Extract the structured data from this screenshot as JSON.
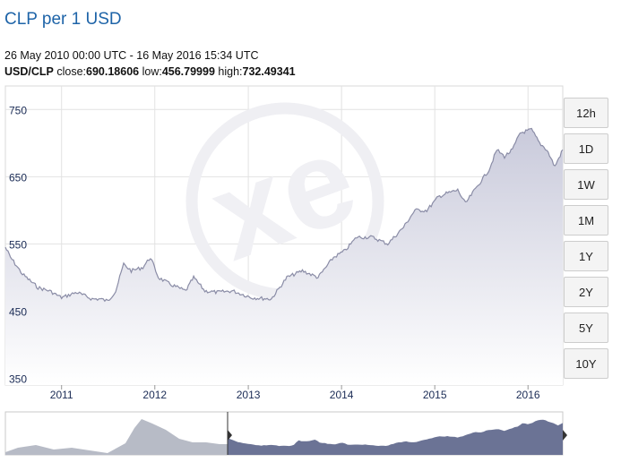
{
  "header": {
    "title": "CLP per 1 USD",
    "date_range": "26 May 2010 00:00 UTC - 16 May 2016 15:34 UTC",
    "pair_label": "USD/CLP",
    "close_label": "close:",
    "close_value": "690.18606",
    "low_label": "low:",
    "low_value": "456.79999",
    "high_label": "high:",
    "high_value": "732.49341"
  },
  "range_buttons": [
    "12h",
    "1D",
    "1W",
    "1M",
    "1Y",
    "2Y",
    "5Y",
    "10Y"
  ],
  "watermark": "xe",
  "colors": {
    "area_fill_top": "#c9cadb",
    "line": "#8a8ca6",
    "navigator_selected": "#6b7395",
    "navigator_unselected": "#b7bbc6",
    "title": "#1e64a8"
  },
  "chart_data": {
    "type": "area",
    "title": "CLP per 1 USD",
    "xlabel": "",
    "ylabel": "",
    "ylim": [
      340,
      785
    ],
    "y_ticks": [
      350,
      450,
      550,
      650,
      750
    ],
    "x_tick_labels": [
      "2011",
      "2012",
      "2013",
      "2014",
      "2015",
      "2016"
    ],
    "x_range": [
      "2010-05-26",
      "2016-05-16"
    ],
    "grid": true,
    "series": [
      {
        "x": [
          "2010-05-26",
          "2010-06-15",
          "2010-08-01",
          "2010-10-01",
          "2010-11-15",
          "2011-01-01",
          "2011-03-01",
          "2011-05-01",
          "2011-06-01",
          "2011-07-01",
          "2011-08-01",
          "2011-09-01",
          "2011-10-01",
          "2011-11-15",
          "2011-12-15",
          "2012-01-15",
          "2012-03-01",
          "2012-05-01",
          "2012-06-01",
          "2012-07-15",
          "2012-09-01",
          "2012-11-01",
          "2013-01-15",
          "2013-04-01",
          "2013-06-01",
          "2013-08-01",
          "2013-10-01",
          "2013-12-01",
          "2014-01-15",
          "2014-03-01",
          "2014-05-01",
          "2014-07-01",
          "2014-09-01",
          "2014-10-15",
          "2014-12-01",
          "2015-01-15",
          "2015-02-15",
          "2015-04-01",
          "2015-05-01",
          "2015-06-15",
          "2015-08-01",
          "2015-09-01",
          "2015-10-01",
          "2015-11-01",
          "2015-12-01",
          "2016-01-15",
          "2016-02-15",
          "2016-03-15",
          "2016-04-15",
          "2016-05-16"
        ],
        "y": [
          545,
          530,
          505,
          485,
          480,
          470,
          478,
          468,
          468,
          465,
          480,
          520,
          510,
          515,
          530,
          500,
          490,
          480,
          500,
          480,
          478,
          480,
          470,
          468,
          500,
          510,
          500,
          530,
          540,
          560,
          560,
          550,
          575,
          600,
          600,
          620,
          625,
          630,
          610,
          635,
          660,
          690,
          680,
          690,
          715,
          720,
          700,
          690,
          665,
          690
        ]
      }
    ]
  }
}
